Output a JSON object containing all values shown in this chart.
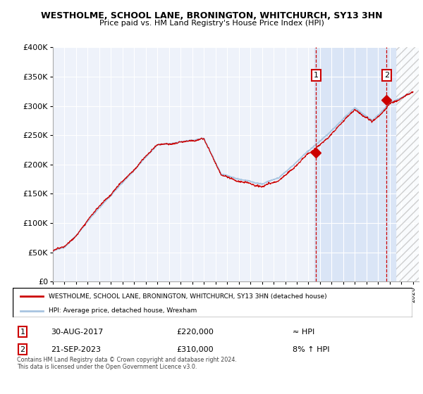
{
  "title": "WESTHOLME, SCHOOL LANE, BRONINGTON, WHITCHURCH, SY13 3HN",
  "subtitle": "Price paid vs. HM Land Registry's House Price Index (HPI)",
  "legend_line1": "WESTHOLME, SCHOOL LANE, BRONINGTON, WHITCHURCH, SY13 3HN (detached house)",
  "legend_line2": "HPI: Average price, detached house, Wrexham",
  "annotation1_label": "1",
  "annotation1_date": "30-AUG-2017",
  "annotation1_price": "£220,000",
  "annotation1_hpi": "≈ HPI",
  "annotation2_label": "2",
  "annotation2_date": "21-SEP-2023",
  "annotation2_price": "£310,000",
  "annotation2_hpi": "8% ↑ HPI",
  "footer": "Contains HM Land Registry data © Crown copyright and database right 2024.\nThis data is licensed under the Open Government Licence v3.0.",
  "ylim": [
    0,
    400000
  ],
  "yticks": [
    0,
    50000,
    100000,
    150000,
    200000,
    250000,
    300000,
    350000,
    400000
  ],
  "xlim_start": 1995.0,
  "xlim_end": 2026.5,
  "background_color": "#ffffff",
  "plot_bg_color": "#eef2fa",
  "grid_color": "#ffffff",
  "hpi_color": "#a8c4e0",
  "price_color": "#cc0000",
  "marker1_x": 2017.66,
  "marker2_x": 2023.72,
  "marker1_y": 220000,
  "marker2_y": 310000,
  "blue_highlight_start": 2017.5,
  "hatch_region_start": 2024.58,
  "hatch_region_end": 2026.5
}
